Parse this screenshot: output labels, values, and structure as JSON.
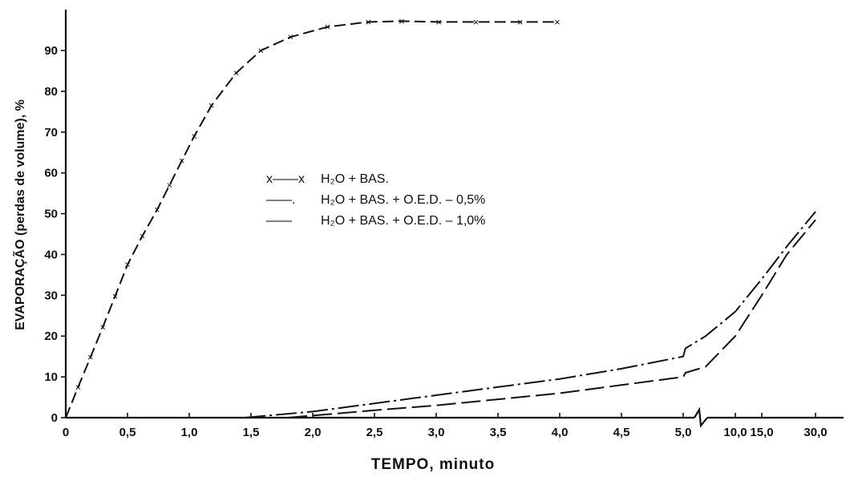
{
  "chart_data": {
    "type": "line",
    "xlabel": "TEMPO, minuto",
    "ylabel": "EVAPORAÇÃO (perdas de volume), %",
    "ylim": [
      0,
      100
    ],
    "grid": false,
    "legend_position": "center",
    "x_ticks": [
      {
        "value": 0,
        "label": "0"
      },
      {
        "value": 0.5,
        "label": "0,5"
      },
      {
        "value": 1.0,
        "label": "1,0"
      },
      {
        "value": 1.5,
        "label": "1,5"
      },
      {
        "value": 2.0,
        "label": "2,0"
      },
      {
        "value": 2.5,
        "label": "2,5"
      },
      {
        "value": 3.0,
        "label": "3,0"
      },
      {
        "value": 3.5,
        "label": "3,5"
      },
      {
        "value": 4.0,
        "label": "4,0"
      },
      {
        "value": 4.5,
        "label": "4,5"
      },
      {
        "value": 5.0,
        "label": "5,0"
      },
      {
        "value": 10.0,
        "label": "10,0"
      },
      {
        "value": 15.0,
        "label": "15,0"
      },
      {
        "value": 30.0,
        "label": "30,0"
      }
    ],
    "y_ticks": [
      {
        "value": 0,
        "label": "0"
      },
      {
        "value": 10,
        "label": "10"
      },
      {
        "value": 20,
        "label": "20"
      },
      {
        "value": 30,
        "label": "30"
      },
      {
        "value": 40,
        "label": "40"
      },
      {
        "value": 50,
        "label": "50"
      },
      {
        "value": 60,
        "label": "60"
      },
      {
        "value": 70,
        "label": "70"
      },
      {
        "value": 80,
        "label": "80"
      },
      {
        "value": 90,
        "label": "90"
      }
    ],
    "axis_break": "between 5,0 and 10,0",
    "series": [
      {
        "name": "H₂O + BAS.",
        "legend_symbol": "x——x",
        "style": "solid-with-x-markers",
        "x": [
          0,
          0.1,
          0.2,
          0.3,
          0.4,
          0.5,
          0.62,
          0.74,
          0.84,
          0.94,
          1.04,
          1.18,
          1.38,
          1.58,
          1.82,
          2.12,
          2.45,
          2.72,
          3.02,
          3.32,
          3.68,
          3.98
        ],
        "y": [
          0,
          7.5,
          14.8,
          22.2,
          29.8,
          37.5,
          44.5,
          51,
          57,
          63,
          69,
          76.5,
          84.5,
          90,
          93.3,
          95.8,
          97,
          97.2,
          97,
          97,
          97,
          97
        ]
      },
      {
        "name": "H₂O + BAS. + O.E.D. – 0,5%",
        "legend_symbol": "——.",
        "style": "dash-dot",
        "x": [
          1.45,
          2.0,
          2.5,
          3.0,
          3.5,
          4.0,
          4.5,
          5.0,
          5.15,
          6.5,
          10.0,
          15.0,
          22.0,
          30.0
        ],
        "y": [
          0,
          1.5,
          3.5,
          5.5,
          7.5,
          9.5,
          12.0,
          15.0,
          17.0,
          20.0,
          26.0,
          34.0,
          42.0,
          50.5
        ]
      },
      {
        "name": "H₂O + BAS. + O.E.D. – 1,0%",
        "legend_symbol": "——",
        "style": "long-dash",
        "x": [
          1.8,
          2.5,
          3.0,
          3.5,
          4.0,
          4.5,
          5.0,
          5.15,
          6.5,
          10.0,
          15.0,
          22.0,
          30.0
        ],
        "y": [
          0,
          1.8,
          3.0,
          4.5,
          6.0,
          8.0,
          10.0,
          11.0,
          12.5,
          20.0,
          30.0,
          40.0,
          48.5
        ]
      }
    ]
  }
}
